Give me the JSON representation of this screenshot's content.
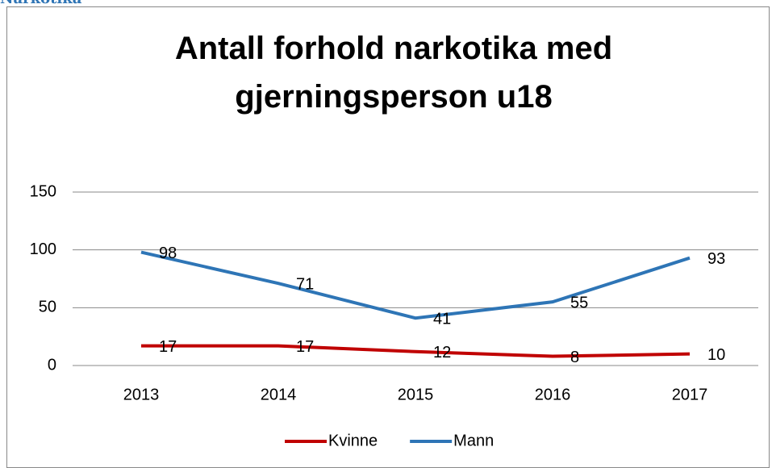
{
  "heading": "Narkotika",
  "chart_data": {
    "type": "line",
    "title": "Antall forhold narkotika med gjerningsperson u18",
    "categories": [
      "2013",
      "2014",
      "2015",
      "2016",
      "2017"
    ],
    "series": [
      {
        "name": "Kvinne",
        "color": "#c00000",
        "values": [
          17,
          17,
          12,
          8,
          10
        ]
      },
      {
        "name": "Mann",
        "color": "#2e75b6",
        "values": [
          98,
          71,
          41,
          55,
          93
        ]
      }
    ],
    "ylim": [
      0,
      150
    ],
    "yticks": [
      0,
      50,
      100,
      150
    ],
    "grid": true,
    "legend": "bottom"
  }
}
